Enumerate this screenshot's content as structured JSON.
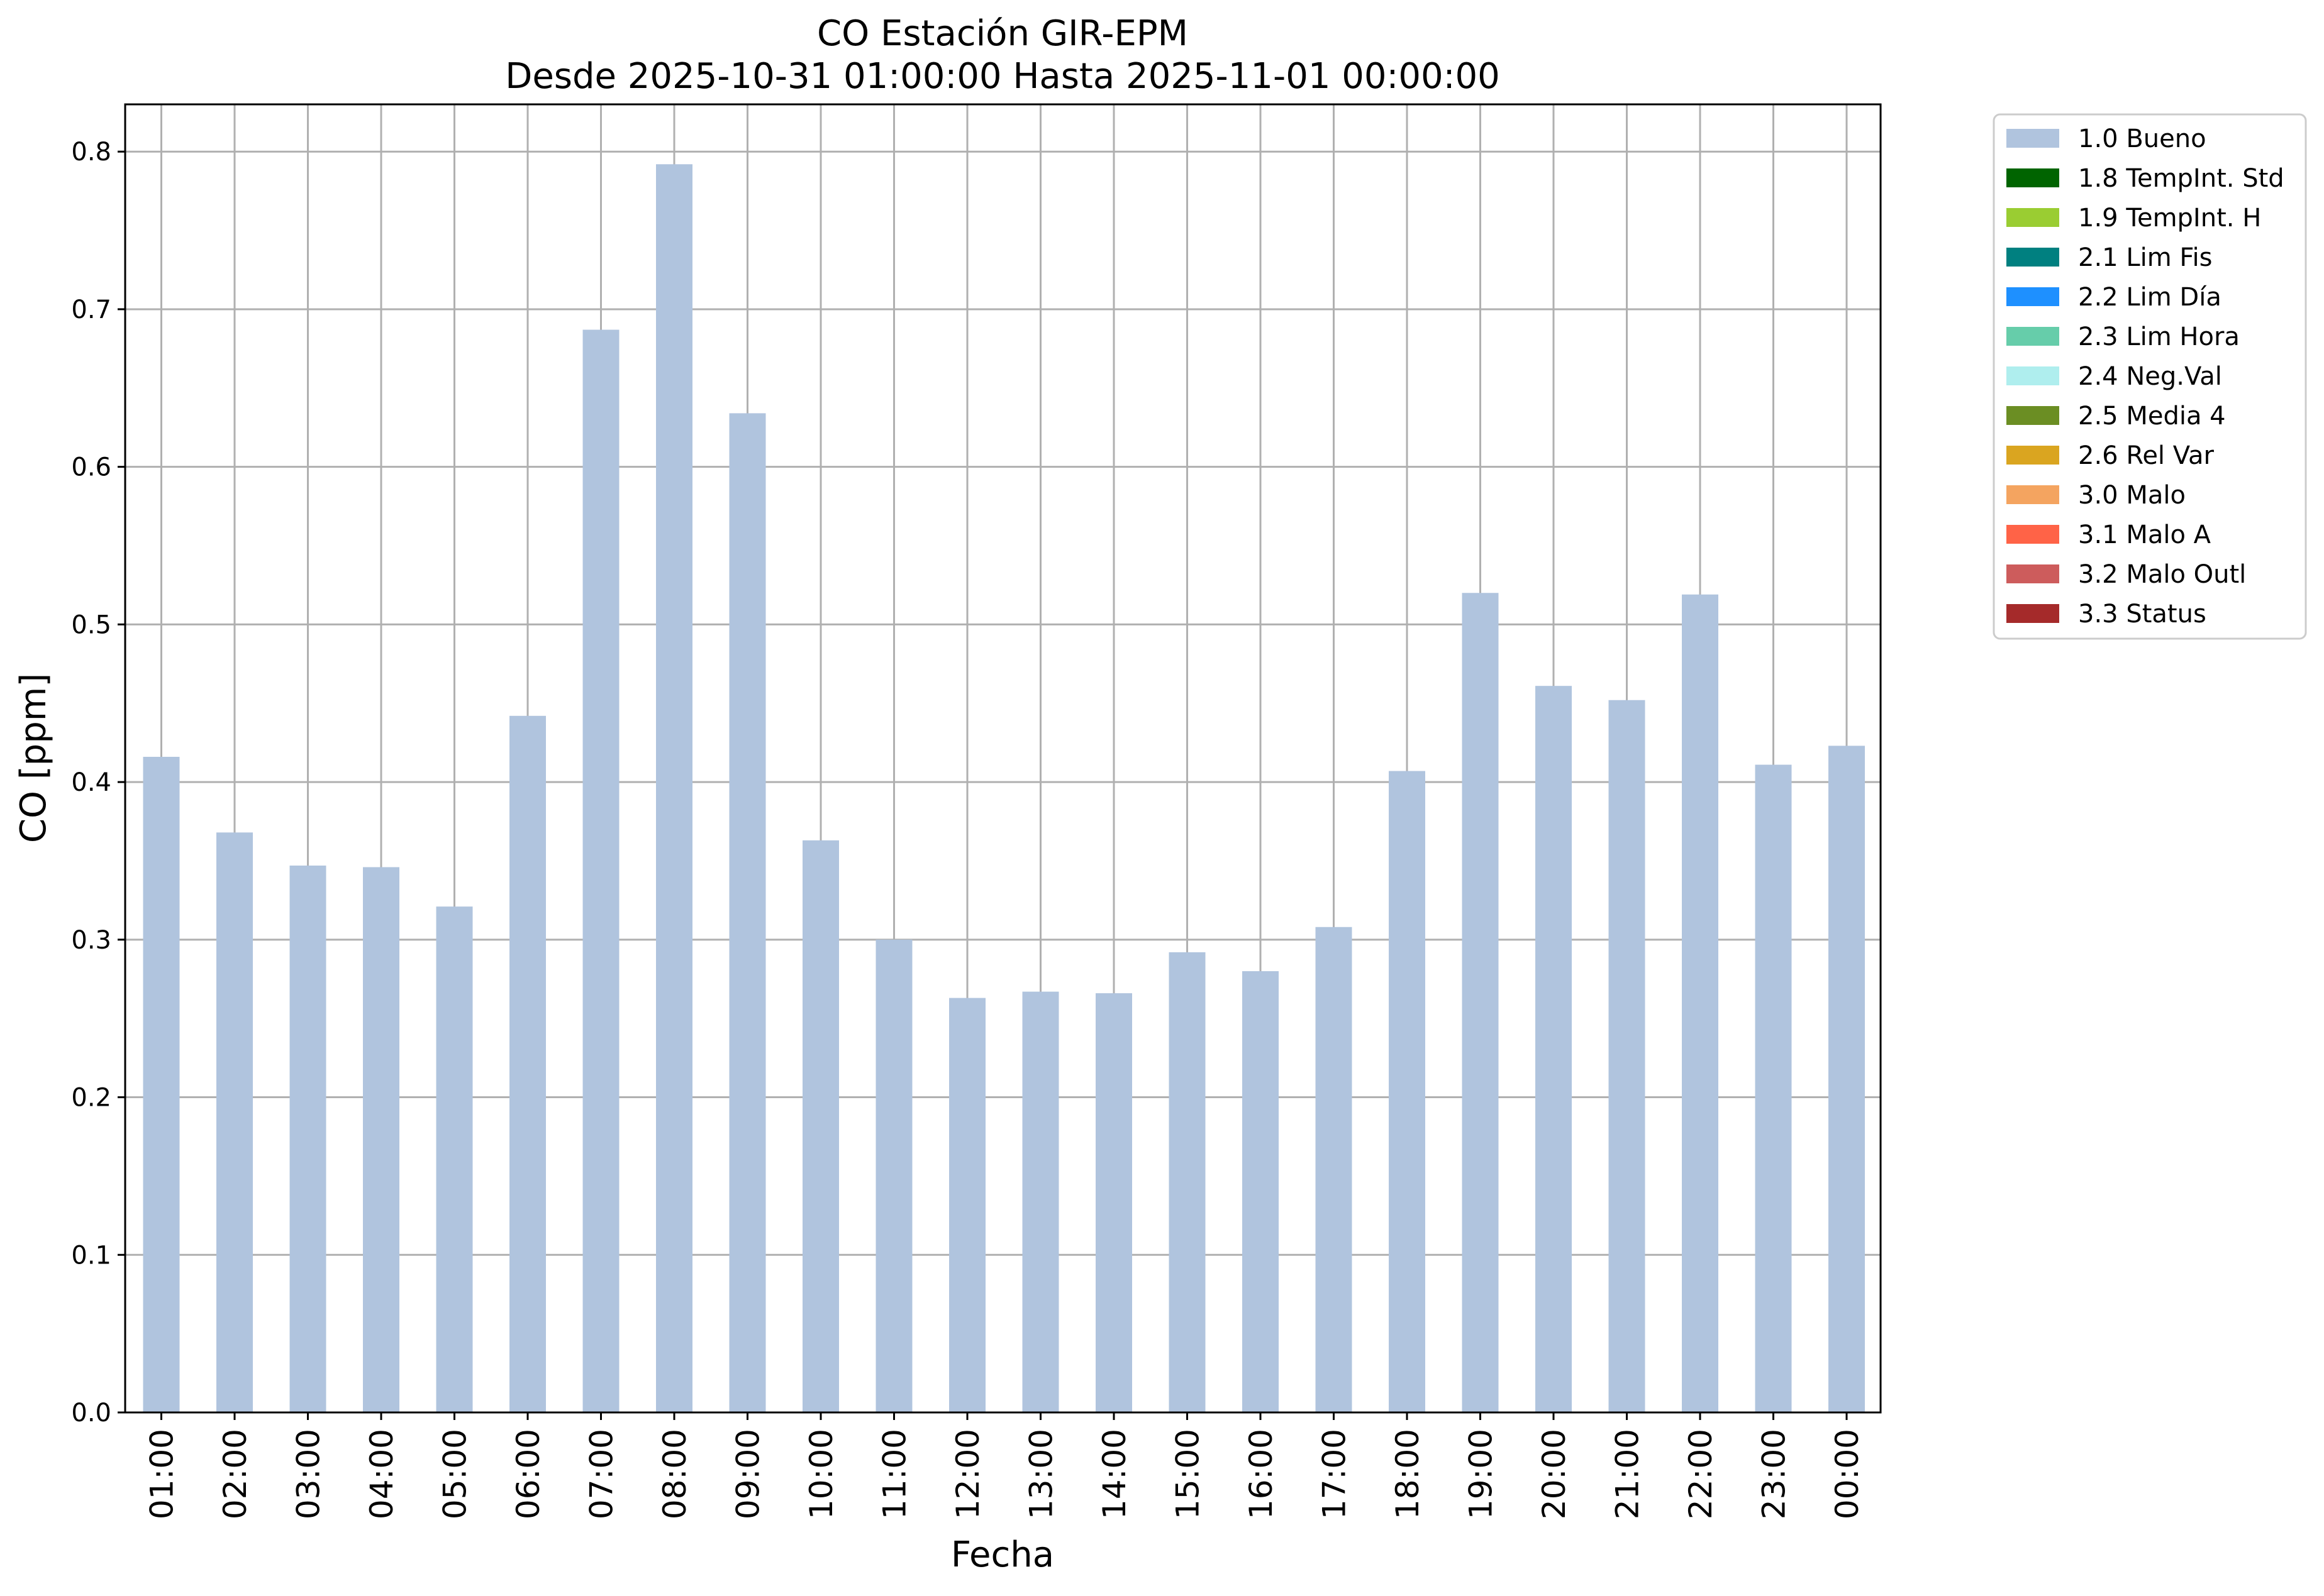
{
  "chart_data": {
    "type": "bar",
    "title": "CO Estación GIR-EPM",
    "subtitle": "Desde 2025-10-31 01:00:00 Hasta 2025-11-01 00:00:00",
    "xlabel": "Fecha",
    "ylabel": "CO [ppm]",
    "ylim": [
      0,
      0.83
    ],
    "yticks": [
      "0.0",
      "0.1",
      "0.2",
      "0.3",
      "0.4",
      "0.5",
      "0.6",
      "0.7",
      "0.8"
    ],
    "grid": true,
    "legend_position": "outside-top-right",
    "categories": [
      "01:00",
      "02:00",
      "03:00",
      "04:00",
      "05:00",
      "06:00",
      "07:00",
      "08:00",
      "09:00",
      "10:00",
      "11:00",
      "12:00",
      "13:00",
      "14:00",
      "15:00",
      "16:00",
      "17:00",
      "18:00",
      "19:00",
      "20:00",
      "21:00",
      "22:00",
      "23:00",
      "00:00"
    ],
    "series": [
      {
        "name": "1.0 Bueno",
        "color": "#b0c4de",
        "values": [
          0.416,
          0.368,
          0.347,
          0.346,
          0.321,
          0.442,
          0.687,
          0.792,
          0.634,
          0.363,
          0.3,
          0.263,
          0.267,
          0.266,
          0.292,
          0.28,
          0.308,
          0.407,
          0.52,
          0.461,
          0.452,
          0.519,
          0.411,
          0.423
        ]
      }
    ],
    "legend": [
      {
        "label": "1.0 Bueno",
        "color": "#b0c4de"
      },
      {
        "label": "1.8 TempInt. Std",
        "color": "#006400"
      },
      {
        "label": "1.9 TempInt. H",
        "color": "#9acd32"
      },
      {
        "label": "2.1 Lim Fis",
        "color": "#008080"
      },
      {
        "label": "2.2 Lim Día",
        "color": "#1e90ff"
      },
      {
        "label": "2.3 Lim Hora",
        "color": "#66cdaa"
      },
      {
        "label": "2.4 Neg.Val",
        "color": "#afeeee"
      },
      {
        "label": "2.5 Media 4",
        "color": "#6b8e23"
      },
      {
        "label": "2.6 Rel Var",
        "color": "#daa520"
      },
      {
        "label": "3.0 Malo",
        "color": "#f4a460"
      },
      {
        "label": "3.1 Malo A",
        "color": "#ff6347"
      },
      {
        "label": "3.2 Malo Outl",
        "color": "#cd5c5c"
      },
      {
        "label": "3.3 Status",
        "color": "#a52a2a"
      }
    ]
  }
}
